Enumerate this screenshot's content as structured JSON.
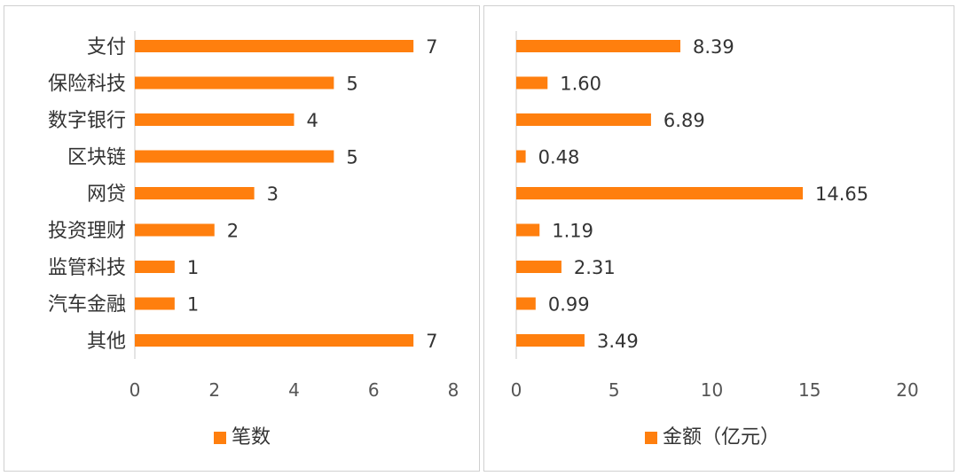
{
  "chart_data": [
    {
      "type": "bar",
      "orientation": "horizontal",
      "categories": [
        "支付",
        "保险科技",
        "数字银行",
        "区块链",
        "网贷",
        "投资理财",
        "监管科技",
        "汽车金融",
        "其他"
      ],
      "series": [
        {
          "name": "笔数",
          "values": [
            7,
            5,
            4,
            5,
            3,
            2,
            1,
            1,
            7
          ]
        }
      ],
      "value_labels": [
        "7",
        "5",
        "4",
        "5",
        "3",
        "2",
        "1",
        "1",
        "7"
      ],
      "xlim": [
        0,
        8
      ],
      "xticks": [
        "0",
        "2",
        "4",
        "6",
        "8"
      ],
      "legend_position": "bottom",
      "grid": false,
      "color": "#FF7F0E"
    },
    {
      "type": "bar",
      "orientation": "horizontal",
      "categories": [
        "支付",
        "保险科技",
        "数字银行",
        "区块链",
        "网贷",
        "投资理财",
        "监管科技",
        "汽车金融",
        "其他"
      ],
      "series": [
        {
          "name": "金额（亿元）",
          "values": [
            8.39,
            1.6,
            6.89,
            0.48,
            14.65,
            1.19,
            2.31,
            0.99,
            3.49
          ]
        }
      ],
      "value_labels": [
        "8.39",
        "1.60",
        "6.89",
        "0.48",
        "14.65",
        "1.19",
        "2.31",
        "0.99",
        "3.49"
      ],
      "xlim": [
        0,
        20
      ],
      "xticks": [
        "0",
        "5",
        "10",
        "15",
        "20"
      ],
      "legend_position": "bottom",
      "grid": false,
      "color": "#FF7F0E"
    }
  ]
}
